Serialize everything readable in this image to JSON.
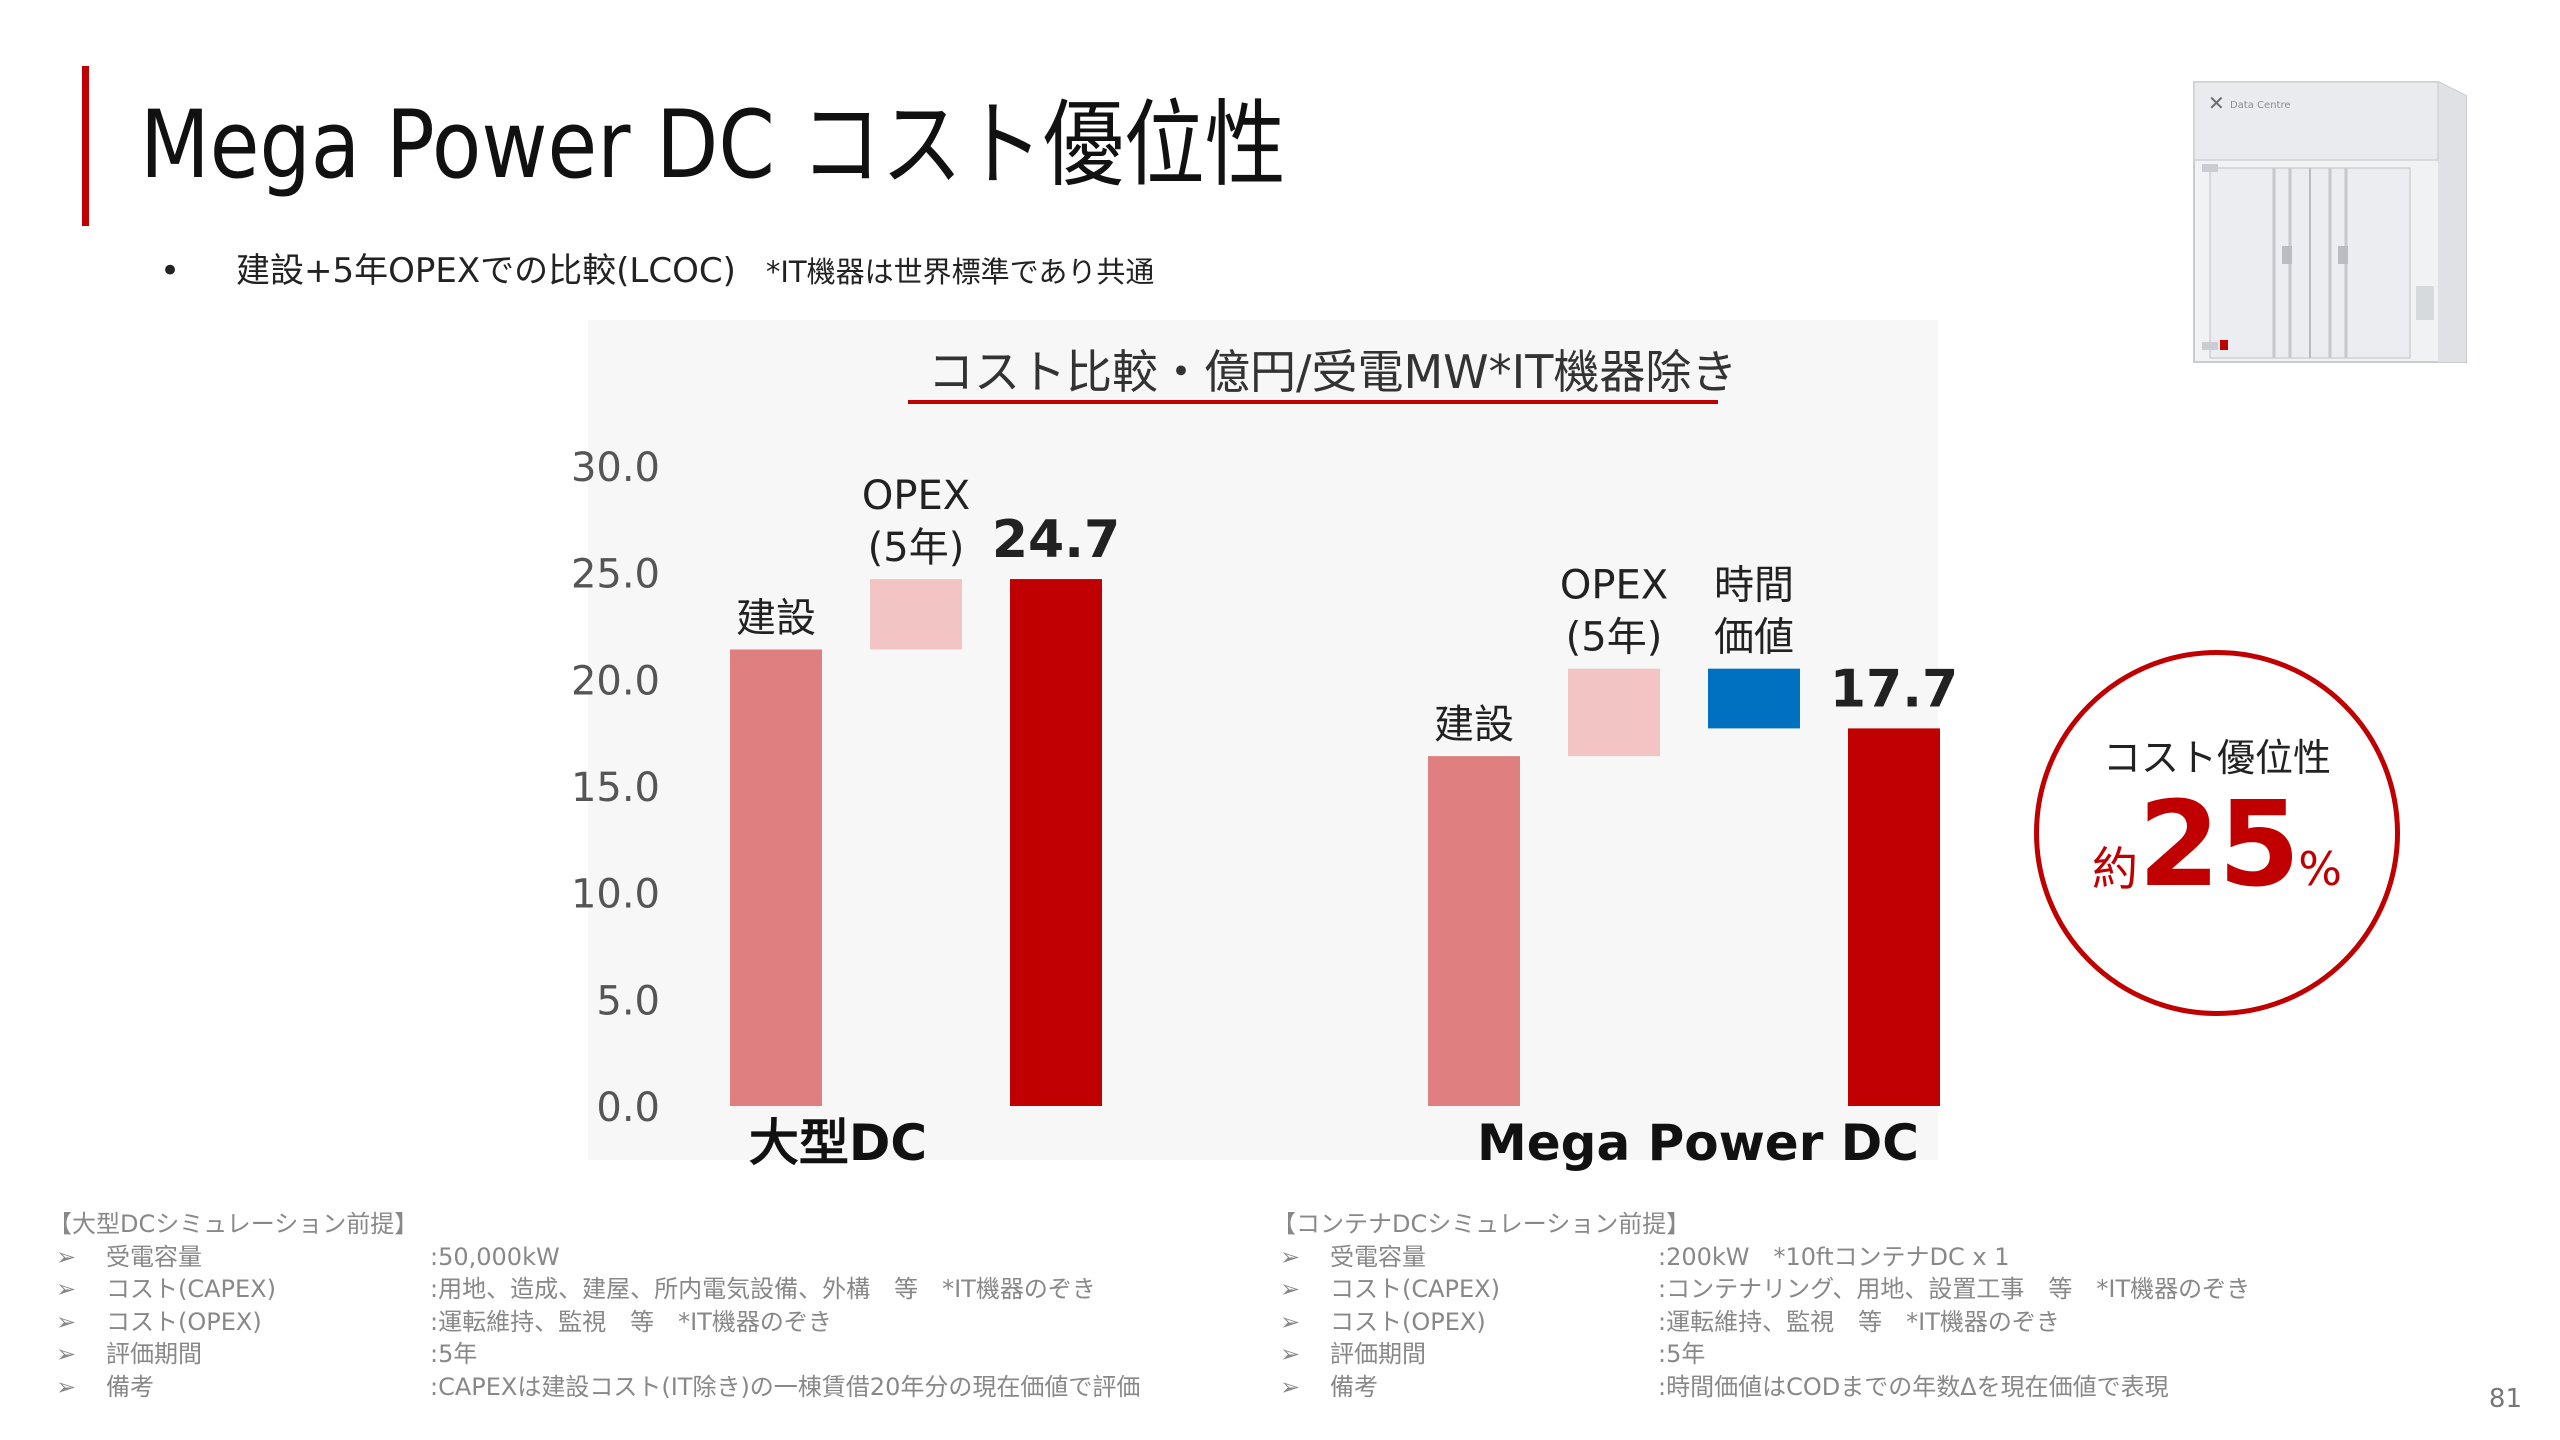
{
  "header": {
    "title": "Mega Power DC コスト優位性",
    "bullet_symbol": "•",
    "bullet_text": "建設+5年OPEXでの比較(LCOC)",
    "bullet_note": "*IT機器は世界標準であり共通"
  },
  "chart_data": {
    "type": "bar",
    "title": "コスト比較・億円/受電MW*IT機器除き",
    "ylim": [
      0,
      30
    ],
    "yticks": [
      "30.0",
      "25.0",
      "20.0",
      "15.0",
      "10.0",
      "5.0",
      "0.0"
    ],
    "groups": [
      {
        "name": "大型DC",
        "bars": [
          {
            "label": "建設",
            "start": 0,
            "end": 21.4,
            "color": "#e07f7f"
          },
          {
            "label": "OPEX\n(5年)",
            "start": 21.4,
            "end": 24.7,
            "color": "#f2c4c4"
          },
          {
            "label": "",
            "value_label": "24.7",
            "start": 0,
            "end": 24.7,
            "color": "#c00000"
          }
        ]
      },
      {
        "name": "Mega Power DC",
        "bars": [
          {
            "label": "建設",
            "start": 0,
            "end": 16.4,
            "color": "#e07f7f"
          },
          {
            "label": "OPEX\n(5年)",
            "start": 16.4,
            "end": 20.5,
            "color": "#f2c4c4"
          },
          {
            "label": "時間\n価値",
            "start": 17.7,
            "end": 20.5,
            "color": "#0070c0"
          },
          {
            "label": "",
            "value_label": "17.7",
            "start": 0,
            "end": 17.7,
            "color": "#c00000"
          }
        ]
      }
    ]
  },
  "badge": {
    "title": "コスト優位性",
    "prefix": "約",
    "value": "25",
    "suffix": "%"
  },
  "container_image": {
    "brand_text": "Data Centre"
  },
  "notes_left": {
    "heading": "【大型DCシミュレーション前提】",
    "rows": [
      {
        "label": "受電容量",
        "value": ":50,000kW"
      },
      {
        "label": "コスト(CAPEX)",
        "value": ":用地、造成、建屋、所内電気設備、外構　等　*IT機器のぞき"
      },
      {
        "label": "コスト(OPEX)",
        "value": ":運転維持、監視　等　*IT機器のぞき"
      },
      {
        "label": "評価期間",
        "value": ":5年"
      },
      {
        "label": "備考",
        "value": ":CAPEXは建設コスト(IT除き)の一棟賃借20年分の現在価値で評価"
      }
    ]
  },
  "notes_right": {
    "heading": "【コンテナDCシミュレーション前提】",
    "rows": [
      {
        "label": "受電容量",
        "value": ":200kW　*10ftコンテナDC x 1"
      },
      {
        "label": "コスト(CAPEX)",
        "value": ":コンテナリング、用地、設置工事　等　*IT機器のぞき"
      },
      {
        "label": "コスト(OPEX)",
        "value": ":運転維持、監視　等　*IT機器のぞき"
      },
      {
        "label": "評価期間",
        "value": ":5年"
      },
      {
        "label": "備考",
        "value": ":時間価値はCODまでの年数Δを現在価値で表現"
      }
    ]
  },
  "notes_arrow": "➢",
  "page_number": "81"
}
